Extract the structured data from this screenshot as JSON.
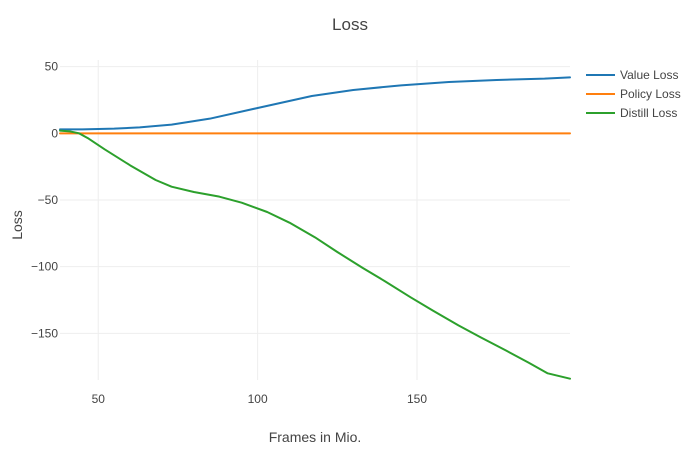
{
  "chart_data": {
    "type": "line",
    "title": "Loss",
    "xlabel": "Frames in Mio.",
    "ylabel": "Loss",
    "xlim": [
      38,
      198
    ],
    "ylim": [
      -185,
      55
    ],
    "x_ticks": [
      50,
      100,
      150
    ],
    "y_ticks": [
      50,
      0,
      -50,
      -100,
      -150
    ],
    "x_tick_labels": [
      "50",
      "100",
      "150"
    ],
    "y_tick_labels": [
      "50",
      "0",
      "−50",
      "−100",
      "−150"
    ],
    "grid": true,
    "legend_position": "top-right",
    "series": [
      {
        "name": "Value Loss",
        "color": "#1f77b4",
        "points": [
          [
            38,
            3
          ],
          [
            45,
            3
          ],
          [
            55,
            3.5
          ],
          [
            63,
            4.5
          ],
          [
            73,
            6.5
          ],
          [
            85,
            11
          ],
          [
            100,
            19
          ],
          [
            117,
            28
          ],
          [
            130,
            32.5
          ],
          [
            145,
            36
          ],
          [
            160,
            38.5
          ],
          [
            175,
            40
          ],
          [
            190,
            41
          ],
          [
            198,
            42
          ]
        ]
      },
      {
        "name": "Policy Loss",
        "color": "#ff7f0e",
        "points": [
          [
            38,
            0
          ],
          [
            60,
            0
          ],
          [
            100,
            0
          ],
          [
            150,
            0
          ],
          [
            198,
            0
          ]
        ]
      },
      {
        "name": "Distill Loss",
        "color": "#2ca02c",
        "points": [
          [
            38,
            2
          ],
          [
            41,
            1.5
          ],
          [
            44,
            0
          ],
          [
            47,
            -4
          ],
          [
            52,
            -12
          ],
          [
            60,
            -24
          ],
          [
            68,
            -35
          ],
          [
            73,
            -40
          ],
          [
            80,
            -44
          ],
          [
            88,
            -47.5
          ],
          [
            95,
            -52
          ],
          [
            103,
            -59
          ],
          [
            110,
            -67
          ],
          [
            118,
            -78
          ],
          [
            125,
            -89
          ],
          [
            133,
            -101
          ],
          [
            140,
            -111
          ],
          [
            148,
            -123
          ],
          [
            155,
            -133
          ],
          [
            163,
            -144
          ],
          [
            170,
            -153
          ],
          [
            178,
            -163
          ],
          [
            185,
            -172
          ],
          [
            191,
            -180
          ],
          [
            198,
            -184
          ]
        ]
      }
    ]
  }
}
